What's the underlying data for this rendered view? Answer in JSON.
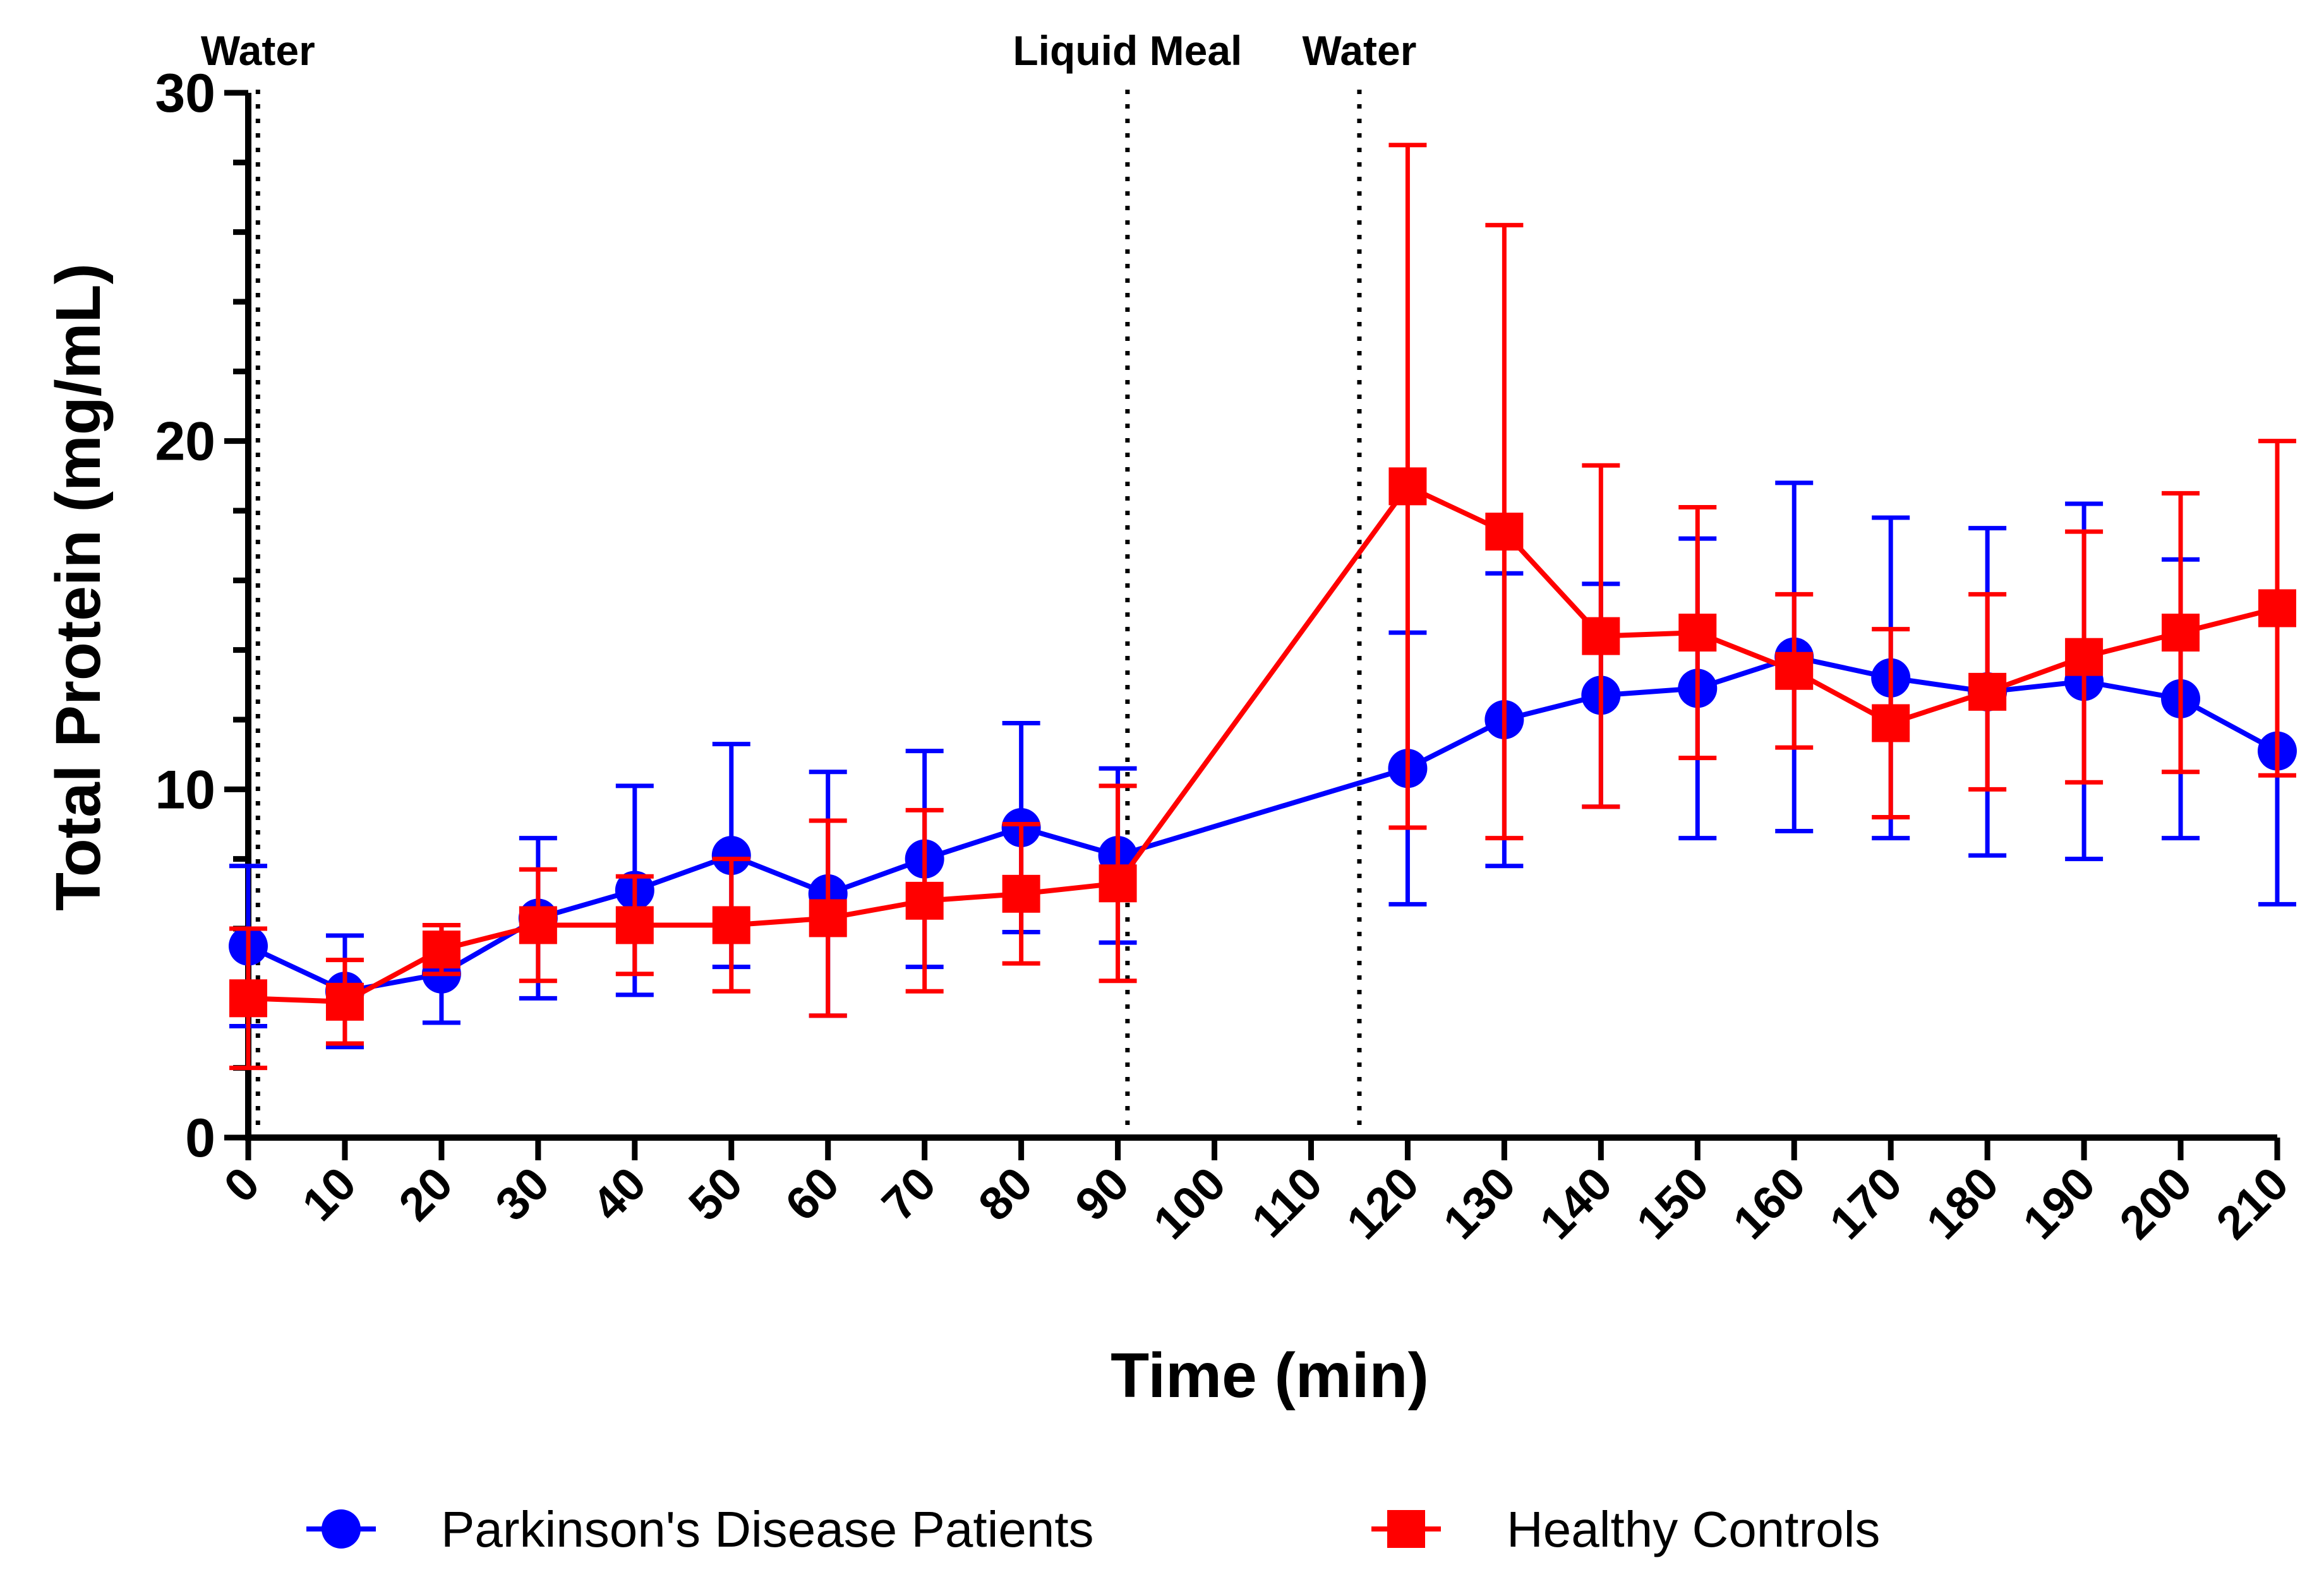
{
  "chart_data": {
    "type": "line",
    "title": "",
    "xlabel": "Time (min)",
    "ylabel": "Total Protein (mg/mL)",
    "xlim": [
      0,
      210
    ],
    "ylim": [
      0,
      30
    ],
    "x_ticks": [
      "0",
      "10",
      "20",
      "30",
      "40",
      "50",
      "60",
      "70",
      "80",
      "90",
      "100",
      "110",
      "120",
      "130",
      "140",
      "150",
      "160",
      "170",
      "180",
      "190",
      "200",
      "210"
    ],
    "y_ticks": [
      "0",
      "10",
      "20",
      "30"
    ],
    "grid": false,
    "legend_position": "bottom",
    "event_markers": [
      {
        "x": 1,
        "label": "Water"
      },
      {
        "x": 91,
        "label": "Liquid Meal"
      },
      {
        "x": 115,
        "label": "Water"
      }
    ],
    "series": [
      {
        "name": "Parkinson's Disease Patients",
        "color": "#0000ff",
        "marker": "circle",
        "x": [
          0,
          10,
          20,
          30,
          40,
          50,
          60,
          70,
          80,
          90,
          120,
          130,
          140,
          150,
          160,
          170,
          180,
          190,
          200,
          210
        ],
        "y": [
          5.5,
          4.2,
          4.7,
          6.3,
          7.1,
          8.1,
          7.0,
          8.0,
          8.9,
          8.1,
          10.6,
          12.0,
          12.7,
          12.9,
          13.8,
          13.2,
          12.8,
          13.1,
          12.6,
          11.1
        ],
        "err": [
          2.3,
          1.6,
          1.4,
          2.3,
          3.0,
          3.2,
          3.5,
          3.1,
          3.0,
          2.5,
          3.9,
          4.2,
          3.2,
          4.3,
          5.0,
          4.6,
          4.7,
          5.1,
          4.0,
          4.4
        ]
      },
      {
        "name": "Healthy Controls",
        "color": "#ff0000",
        "marker": "square",
        "x": [
          0,
          10,
          20,
          30,
          40,
          50,
          60,
          70,
          80,
          90,
          120,
          130,
          140,
          150,
          160,
          170,
          180,
          190,
          200,
          210
        ],
        "y": [
          4.0,
          3.9,
          5.4,
          6.1,
          6.1,
          6.1,
          6.3,
          6.8,
          7.0,
          7.3,
          18.7,
          17.4,
          14.4,
          14.5,
          13.4,
          11.9,
          12.8,
          13.8,
          14.5,
          15.2
        ],
        "err": [
          2.0,
          1.2,
          0.7,
          1.6,
          1.4,
          1.9,
          2.8,
          2.6,
          2.0,
          2.8,
          9.8,
          8.8,
          4.9,
          3.6,
          2.2,
          2.7,
          2.8,
          3.6,
          4.0,
          4.8
        ]
      }
    ]
  }
}
